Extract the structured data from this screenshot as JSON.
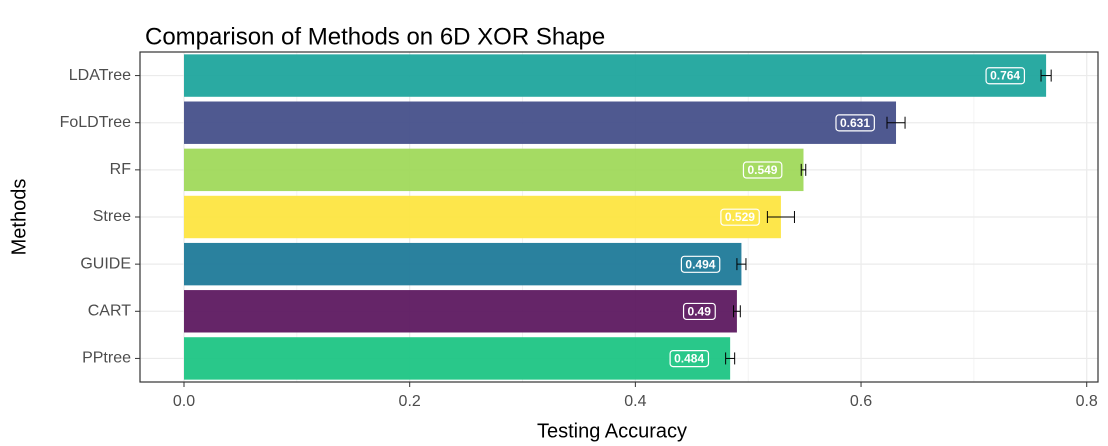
{
  "chart_data": {
    "type": "bar",
    "orientation": "horizontal",
    "title": "Comparison of Methods on 6D XOR Shape",
    "x_label": "Testing Accuracy",
    "y_label": "Methods",
    "categories": [
      "LDATree",
      "FoLDTree",
      "RF",
      "Stree",
      "GUIDE",
      "CART",
      "PPtree"
    ],
    "values": [
      0.764,
      0.631,
      0.549,
      0.529,
      0.494,
      0.49,
      0.484
    ],
    "errors": [
      0.0045,
      0.008,
      0.002,
      0.012,
      0.004,
      0.003,
      0.004
    ],
    "colors": [
      "#1fa59d",
      "#46508a",
      "#a0d95b",
      "#fde541",
      "#1f7a99",
      "#5d1960",
      "#1ec584"
    ],
    "xlim": [
      -0.039,
      0.81
    ],
    "xticks": [
      {
        "value": 0,
        "label": "0.0"
      },
      0.2,
      0.4,
      0.6,
      0.8
    ],
    "minor_xticks": [
      0.1,
      0.3,
      0.5,
      0.7
    ],
    "grid": true
  }
}
